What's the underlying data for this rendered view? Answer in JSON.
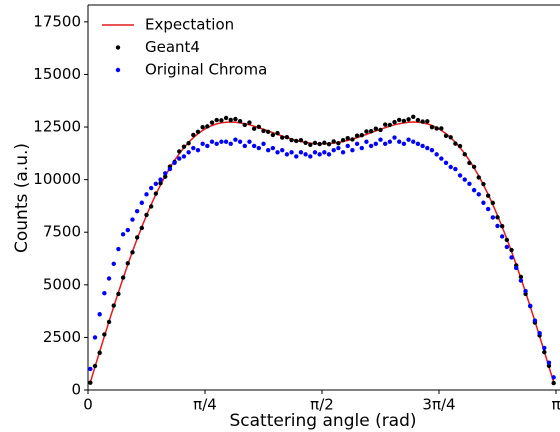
{
  "chart_data": {
    "type": "scatter",
    "xlabel": "Scattering angle (rad)",
    "ylabel": "Counts (a.u.)",
    "xlim": [
      0,
      3.1416
    ],
    "ylim": [
      0,
      18300
    ],
    "xticks": [
      0,
      {
        "value": 0.7854,
        "label": "π/4"
      },
      {
        "value": 1.5708,
        "label": "π/2"
      },
      {
        "value": 2.3562,
        "label": "3π/4"
      },
      {
        "value": 3.1416,
        "label": "π"
      }
    ],
    "yticks": [
      0,
      2500,
      5000,
      7500,
      10000,
      12500,
      15000,
      17500
    ],
    "legend": "upper left",
    "x": [
      0.0157,
      0.0471,
      0.0785,
      0.11,
      0.1414,
      0.1728,
      0.2042,
      0.2356,
      0.267,
      0.2985,
      0.3299,
      0.3613,
      0.3927,
      0.4241,
      0.4555,
      0.4869,
      0.5184,
      0.5498,
      0.5812,
      0.6126,
      0.644,
      0.6754,
      0.7069,
      0.7383,
      0.7697,
      0.8011,
      0.8325,
      0.8639,
      0.8954,
      0.9268,
      0.9582,
      0.9896,
      1.021,
      1.0524,
      1.0838,
      1.1153,
      1.1467,
      1.1781,
      1.2095,
      1.2409,
      1.2723,
      1.3038,
      1.3352,
      1.3666,
      1.398,
      1.4294,
      1.4608,
      1.4923,
      1.5237,
      1.5551,
      1.5865,
      1.6179,
      1.6493,
      1.6808,
      1.7122,
      1.7436,
      1.775,
      1.8064,
      1.8378,
      1.8692,
      1.9007,
      1.9321,
      1.9635,
      1.9949,
      2.0263,
      2.0577,
      2.0892,
      2.1206,
      2.152,
      2.1834,
      2.2148,
      2.2462,
      2.2777,
      2.3091,
      2.3405,
      2.3719,
      2.4033,
      2.4347,
      2.4662,
      2.4976,
      2.529,
      2.5604,
      2.5918,
      2.6232,
      2.6546,
      2.6861,
      2.7175,
      2.7489,
      2.7803,
      2.8117,
      2.8431,
      2.8746,
      2.906,
      2.9374,
      2.9688,
      3.0002,
      3.0316,
      3.0631,
      3.0945,
      3.1259
    ],
    "series": [
      {
        "name": "Expectation",
        "color": "#e41a1c",
        "mode": "line",
        "values": [
          368,
          1101,
          1830,
          2552,
          3264,
          3964,
          4648,
          5314,
          5960,
          6583,
          7182,
          7755,
          8299,
          8814,
          9298,
          9751,
          10171,
          10558,
          10911,
          11231,
          11517,
          11771,
          11992,
          12182,
          12341,
          12471,
          12573,
          12649,
          12701,
          12729,
          12737,
          12727,
          12699,
          12658,
          12604,
          12540,
          12469,
          12392,
          12312,
          12231,
          12150,
          12071,
          11997,
          11928,
          11867,
          11813,
          11770,
          11736,
          11713,
          11702,
          11702,
          11713,
          11736,
          11770,
          11813,
          11867,
          11928,
          11997,
          12071,
          12150,
          12231,
          12312,
          12392,
          12469,
          12540,
          12604,
          12658,
          12699,
          12727,
          12737,
          12729,
          12701,
          12649,
          12573,
          12471,
          12341,
          12182,
          11992,
          11771,
          11517,
          11231,
          10911,
          10558,
          10171,
          9751,
          9298,
          8814,
          8299,
          7755,
          7182,
          6583,
          5960,
          5314,
          4648,
          3964,
          3264,
          2552,
          1830,
          1101,
          368
        ]
      },
      {
        "name": "Geant4",
        "color": "#000000",
        "mode": "markers",
        "values": [
          348,
          1141,
          1770,
          2642,
          3234,
          4014,
          4568,
          5344,
          6020,
          6543,
          7252,
          7705,
          8319,
          8724,
          9338,
          9831,
          10141,
          10618,
          10841,
          11341,
          11567,
          11731,
          12122,
          12272,
          12491,
          12531,
          12713,
          12829,
          12821,
          12929,
          12837,
          12877,
          12779,
          12598,
          12714,
          12420,
          12509,
          12312,
          12272,
          12121,
          12210,
          12001,
          12017,
          11878,
          11837,
          11873,
          11750,
          11656,
          11743,
          11692,
          11752,
          11683,
          11816,
          11730,
          11873,
          11967,
          11908,
          12087,
          12111,
          12290,
          12301,
          12422,
          12362,
          12619,
          12600,
          12734,
          12838,
          12789,
          12867,
          12987,
          12829,
          12761,
          12769,
          12493,
          12431,
          12431,
          12082,
          12012,
          11711,
          11597,
          11201,
          10791,
          10608,
          10101,
          9791,
          9238,
          8894,
          8209,
          7785,
          7132,
          6653,
          5920,
          5374,
          4568,
          3984,
          3204,
          2592,
          1800,
          1151,
          328
        ]
      },
      {
        "name": "Original Chroma",
        "color": "#0000ff",
        "mode": "markers",
        "values": [
          1000,
          2500,
          3600,
          4600,
          5300,
          6000,
          6700,
          7400,
          7600,
          8100,
          8500,
          8900,
          9300,
          9600,
          9800,
          10000,
          10300,
          10500,
          10800,
          11000,
          11100,
          11300,
          11500,
          11400,
          11700,
          11600,
          11800,
          11700,
          11800,
          11800,
          11700,
          11900,
          11800,
          11600,
          11800,
          11600,
          11500,
          11700,
          11400,
          11500,
          11300,
          11400,
          11200,
          11300,
          11100,
          11300,
          11200,
          11100,
          11300,
          11200,
          11300,
          11200,
          11400,
          11500,
          11300,
          11600,
          11400,
          11700,
          11500,
          11800,
          11600,
          11700,
          11900,
          11700,
          11800,
          12000,
          11800,
          11700,
          11900,
          11800,
          11700,
          11600,
          11500,
          11400,
          11200,
          11000,
          10800,
          10600,
          10500,
          10200,
          10000,
          9800,
          9500,
          9300,
          8900,
          8600,
          8200,
          7800,
          7300,
          6800,
          6300,
          5800,
          5200,
          4700,
          4000,
          3300,
          2700,
          2000,
          1300,
          600
        ]
      }
    ]
  }
}
